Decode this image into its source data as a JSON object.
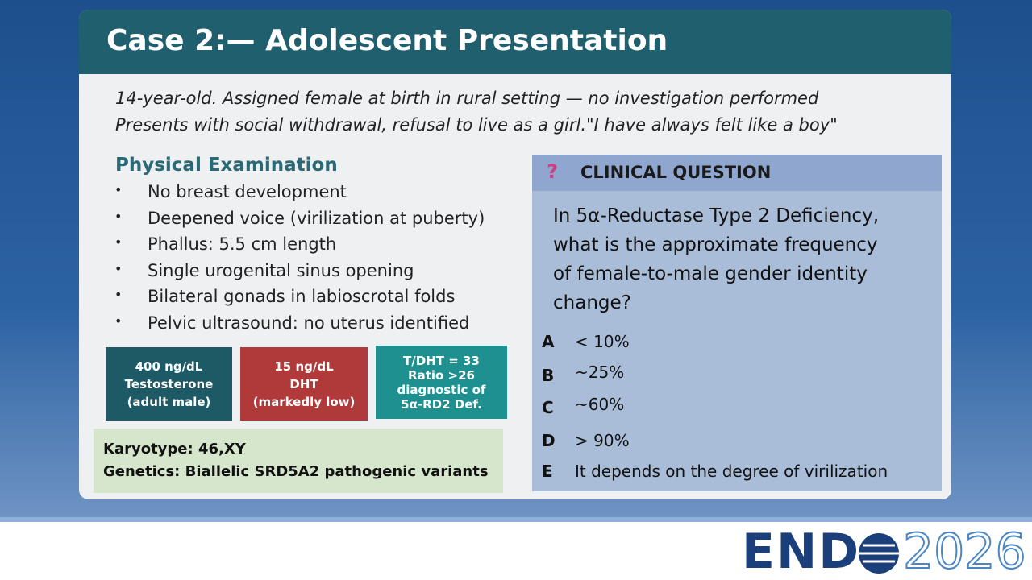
{
  "header": {
    "title": "Case 2:— Adolescent Presentation"
  },
  "intro": [
    "14-year-old. Assigned female at birth in rural setting — no investigation performed",
    "Presents with social withdrawal, refusal to live as a girl.\"I have always felt like a boy\""
  ],
  "exam": {
    "heading": "Physical Examination",
    "items": [
      "No breast development",
      "Deepened voice (virilization at puberty)",
      "Phallus: 5.5 cm length",
      "Single urogenital sinus opening",
      "Bilateral gonads in labioscrotal folds",
      "Pelvic ultrasound: no uterus identified"
    ]
  },
  "labs": [
    [
      "400 ng/dL",
      "Testosterone",
      "(adult male)"
    ],
    [
      "15 ng/dL",
      "DHT",
      "(markedly low)"
    ],
    [
      "T/DHT = 33",
      "Ratio >26",
      "diagnostic  of",
      "5α-RD2  Def."
    ]
  ],
  "genetics": [
    "Karyotype: 46,XY",
    "Genetics: Biallelic SRD5A2 pathogenic variants"
  ],
  "question": {
    "icon": "?",
    "heading": "CLINICAL QUESTION",
    "lines": [
      "In 5α-Reductase Type 2 Deficiency,",
      "what is the approximate frequency",
      "of female-to-male gender identity",
      "change?"
    ],
    "options": [
      {
        "letter": "A",
        "text": "< 10%"
      },
      {
        "letter": "B",
        "text": "~25%"
      },
      {
        "letter": "C",
        "text": "~60%"
      },
      {
        "letter": "D",
        "text": "> 90%"
      },
      {
        "letter": "E",
        "text": "It depends on the degree of virilization"
      }
    ]
  },
  "logo": {
    "brand": "END",
    "year": "2026"
  }
}
